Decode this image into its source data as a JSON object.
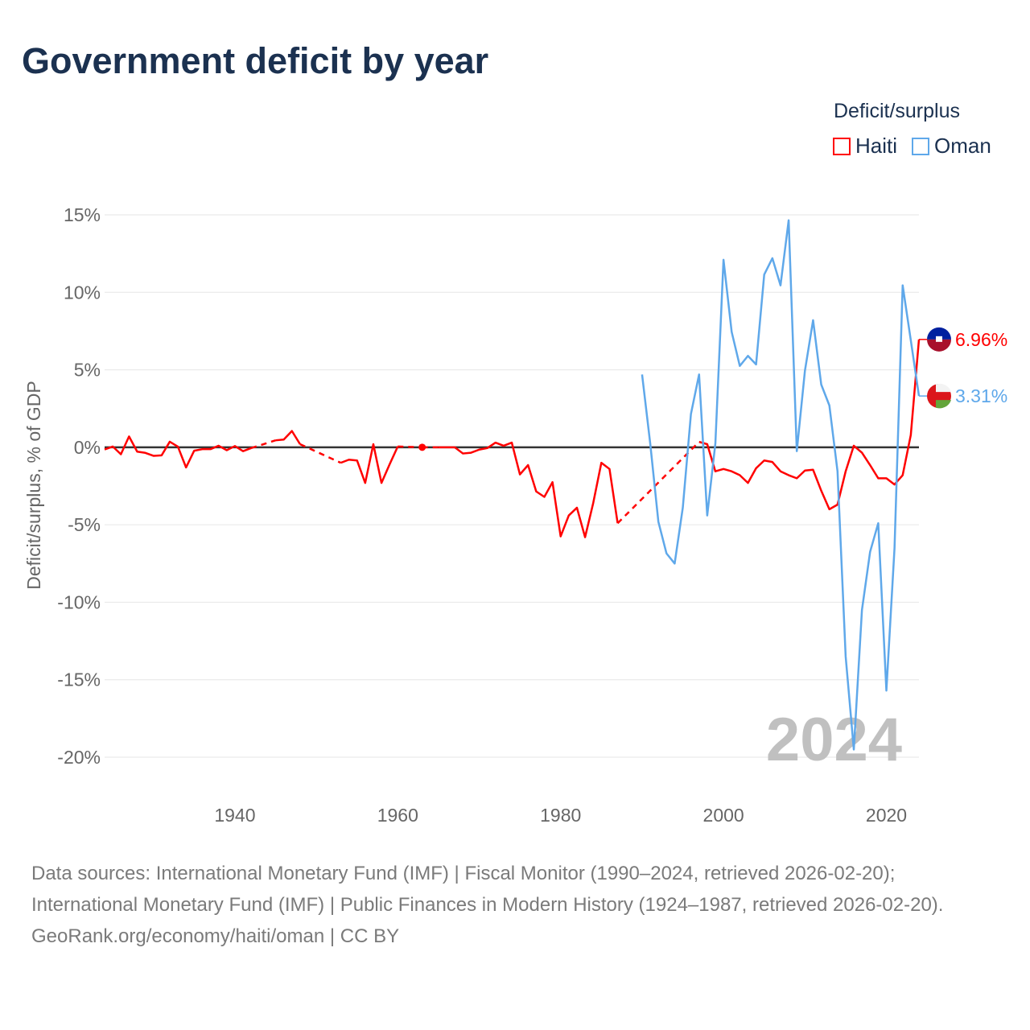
{
  "title": "Government deficit by year",
  "legend": {
    "title": "Deficit/surplus",
    "items": [
      {
        "name": "Haiti",
        "color": "#ff0000"
      },
      {
        "name": "Oman",
        "color": "#5fa8ea"
      }
    ]
  },
  "chart_data": {
    "type": "line",
    "title": "Government deficit by year",
    "xlabel": "",
    "ylabel": "Deficit/surplus, % of GDP",
    "xlim": [
      1924,
      2024
    ],
    "ylim": [
      -20,
      15
    ],
    "xticks": [
      1940,
      1960,
      1980,
      2000,
      2020
    ],
    "yticks": [
      15,
      10,
      5,
      0,
      -5,
      -10,
      -15,
      -20
    ],
    "ytick_labels": [
      "15%",
      "10%",
      "5%",
      "0%",
      "-5%",
      "-10%",
      "-15%",
      "-20%"
    ],
    "grid": true,
    "legend_position": "top-right",
    "year_watermark": "2024",
    "series": [
      {
        "name": "Haiti",
        "color": "#ff0000",
        "end_label": "6.96%",
        "start_year": 1924,
        "values": [
          -0.14,
          0.05,
          -0.45,
          0.7,
          -0.28,
          -0.36,
          -0.55,
          -0.52,
          0.36,
          0.04,
          -1.3,
          -0.22,
          -0.12,
          -0.12,
          0.1,
          -0.19,
          0.08,
          -0.25,
          -0.05,
          null,
          null,
          0.45,
          0.5,
          1.05,
          0.2,
          null,
          null,
          null,
          null,
          -1.0,
          -0.8,
          -0.85,
          -2.3,
          0.2,
          -2.3,
          -1.1,
          0.05,
          null,
          null,
          0,
          null,
          0,
          0,
          0,
          -0.4,
          -0.35,
          -0.15,
          -0.05,
          0.3,
          0.1,
          0.3,
          -1.75,
          -1.15,
          -2.85,
          -3.2,
          -2.25,
          -5.75,
          -4.4,
          -3.9,
          -5.8,
          -3.6,
          -1.0,
          -1.4,
          -4.9,
          null,
          null,
          null,
          null,
          null,
          null,
          null,
          null,
          null,
          0.35,
          0.2,
          -1.55,
          -1.4,
          -1.55,
          -1.8,
          -2.3,
          -1.35,
          -0.85,
          -0.95,
          -1.55,
          -1.8,
          -2.0,
          -1.5,
          -1.45,
          -2.8,
          -4.0,
          -3.7,
          -1.55,
          0.1,
          -0.35,
          -1.15,
          -2.0,
          -2.0,
          -2.4,
          -1.8,
          0.8,
          6.96
        ]
      },
      {
        "name": "Oman",
        "color": "#5fa8ea",
        "end_label": "3.31%",
        "start_year": 1990,
        "values": [
          4.7,
          0.25,
          -4.8,
          -6.85,
          -7.5,
          -3.9,
          2.15,
          4.7,
          -4.4,
          0.25,
          12.1,
          7.45,
          5.25,
          5.9,
          5.35,
          11.15,
          12.2,
          10.45,
          14.65,
          -0.25,
          4.95,
          8.2,
          4.05,
          2.7,
          -1.55,
          -13.5,
          -19.5,
          -10.5,
          -6.75,
          -4.9,
          -15.7,
          -6.5,
          10.45,
          6.9,
          3.31
        ]
      }
    ]
  },
  "footer": {
    "sources": "Data sources: International Monetary Fund (IMF) | Fiscal Monitor (1990–2024, retrieved 2026-02-20); International Monetary Fund (IMF) | Public Finances in Modern History (1924–1987, retrieved 2026-02-20).",
    "credit": "GeoRank.org/economy/haiti/oman | CC BY"
  }
}
